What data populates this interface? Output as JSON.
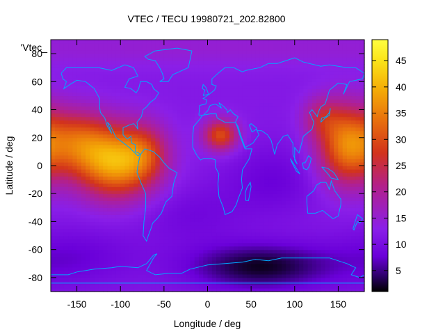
{
  "chart_data": {
    "type": "heatmap",
    "title": "VTEC / TECU 19980721_202.82800",
    "xlabel": "Longitude / deg",
    "ylabel": "Latitude / deg",
    "xlim": [
      -180,
      180
    ],
    "ylim": [
      -90,
      90
    ],
    "xticks": [
      -150,
      -100,
      -50,
      0,
      50,
      100,
      150
    ],
    "yticks": [
      -80,
      -60,
      -40,
      -20,
      0,
      20,
      40,
      60,
      80
    ],
    "legend_label": "'Vtec_",
    "colorbar": {
      "range": [
        1,
        49
      ],
      "ticks": [
        5,
        10,
        15,
        20,
        25,
        30,
        35,
        40,
        45
      ],
      "palette": [
        "#000000",
        "#2b0066",
        "#6a00d9",
        "#8a1fe8",
        "#b3208a",
        "#d2331c",
        "#e8700d",
        "#f4ab06",
        "#fbe51a",
        "#ffff40"
      ],
      "palette_stops": [
        0,
        0.06,
        0.14,
        0.25,
        0.42,
        0.55,
        0.68,
        0.8,
        0.92,
        1
      ]
    },
    "blobs": [
      {
        "name": "background",
        "lon": 0,
        "lat": 0,
        "slon": 1000,
        "slat": 1000,
        "amp": 12
      },
      {
        "name": "pacific-crest",
        "lon": -105,
        "lat": 3,
        "slon": 32,
        "slat": 18,
        "amp": 27
      },
      {
        "name": "pacific-tail",
        "lon": -150,
        "lat": 18,
        "slon": 25,
        "slat": 16,
        "amp": 14
      },
      {
        "name": "pacific-east",
        "lon": -70,
        "lat": 10,
        "slon": 18,
        "slat": 14,
        "amp": 8
      },
      {
        "name": "west-pacific",
        "lon": 160,
        "lat": 15,
        "slon": 24,
        "slat": 20,
        "amp": 23
      },
      {
        "name": "east-asia",
        "lon": 130,
        "lat": 35,
        "slon": 15,
        "slat": 10,
        "amp": 8
      },
      {
        "name": "north-africa",
        "lon": 15,
        "lat": 22,
        "slon": 14,
        "slat": 8,
        "amp": 18
      },
      {
        "name": "indian-ocean",
        "lon": 75,
        "lat": -10,
        "slon": 40,
        "slat": 18,
        "amp": -4
      },
      {
        "name": "south-atlantic",
        "lon": -20,
        "lat": -35,
        "slon": 45,
        "slat": 15,
        "amp": -3
      },
      {
        "name": "south-depletion",
        "lon": 60,
        "lat": -72,
        "slon": 60,
        "slat": 12,
        "amp": -10
      },
      {
        "name": "south-pacific-low",
        "lon": -150,
        "lat": -65,
        "slon": 50,
        "slat": 15,
        "amp": -4
      },
      {
        "name": "arctic",
        "lon": 0,
        "lat": 85,
        "slon": 1000,
        "slat": 10,
        "amp": 3
      }
    ],
    "coastlines": [
      [
        [
          -168,
          66
        ],
        [
          -162,
          70
        ],
        [
          -140,
          70
        ],
        [
          -125,
          70
        ],
        [
          -110,
          68
        ],
        [
          -95,
          72
        ],
        [
          -85,
          70
        ],
        [
          -80,
          64
        ],
        [
          -90,
          62
        ],
        [
          -95,
          56
        ],
        [
          -88,
          55
        ],
        [
          -82,
          52
        ],
        [
          -79,
          55
        ],
        [
          -77,
          60
        ],
        [
          -70,
          60
        ],
        [
          -64,
          58
        ],
        [
          -62,
          55
        ],
        [
          -56,
          52
        ],
        [
          -60,
          48
        ],
        [
          -66,
          45
        ],
        [
          -70,
          42
        ],
        [
          -74,
          40
        ],
        [
          -76,
          35
        ],
        [
          -81,
          31
        ],
        [
          -80,
          26
        ],
        [
          -82,
          28
        ],
        [
          -85,
          30
        ],
        [
          -90,
          29
        ],
        [
          -97,
          27
        ],
        [
          -97,
          22
        ],
        [
          -92,
          19
        ],
        [
          -88,
          21
        ],
        [
          -87,
          16
        ],
        [
          -83,
          15
        ],
        [
          -83,
          10
        ],
        [
          -79,
          9
        ],
        [
          -77,
          8
        ],
        [
          -80,
          7
        ],
        [
          -85,
          10
        ],
        [
          -90,
          13
        ],
        [
          -96,
          16
        ],
        [
          -105,
          20
        ],
        [
          -112,
          29
        ],
        [
          -115,
          31
        ],
        [
          -110,
          23
        ],
        [
          -115,
          28
        ],
        [
          -118,
          34
        ],
        [
          -123,
          38
        ],
        [
          -124,
          42
        ],
        [
          -124,
          48
        ],
        [
          -130,
          55
        ],
        [
          -140,
          60
        ],
        [
          -150,
          61
        ],
        [
          -158,
          58
        ],
        [
          -165,
          55
        ],
        [
          -162,
          60
        ],
        [
          -166,
          62
        ],
        [
          -168,
          66
        ]
      ],
      [
        [
          -77,
          8
        ],
        [
          -72,
          12
        ],
        [
          -62,
          10
        ],
        [
          -55,
          6
        ],
        [
          -50,
          2
        ],
        [
          -44,
          -2
        ],
        [
          -35,
          -5
        ],
        [
          -39,
          -13
        ],
        [
          -41,
          -22
        ],
        [
          -48,
          -26
        ],
        [
          -53,
          -34
        ],
        [
          -58,
          -38
        ],
        [
          -63,
          -41
        ],
        [
          -65,
          -45
        ],
        [
          -68,
          -50
        ],
        [
          -70,
          -54
        ],
        [
          -74,
          -50
        ],
        [
          -73,
          -40
        ],
        [
          -71,
          -30
        ],
        [
          -71,
          -20
        ],
        [
          -76,
          -13
        ],
        [
          -81,
          -5
        ],
        [
          -80,
          0
        ],
        [
          -79,
          3
        ],
        [
          -77,
          8
        ]
      ],
      [
        [
          -10,
          36
        ],
        [
          -9,
          43
        ],
        [
          -2,
          44
        ],
        [
          -1,
          47
        ],
        [
          -5,
          48
        ],
        [
          2,
          51
        ],
        [
          8,
          54
        ],
        [
          10,
          57
        ],
        [
          5,
          58
        ],
        [
          5,
          62
        ],
        [
          14,
          67
        ],
        [
          20,
          70
        ],
        [
          30,
          70
        ],
        [
          40,
          67
        ],
        [
          44,
          68
        ],
        [
          60,
          70
        ],
        [
          70,
          73
        ],
        [
          80,
          73
        ],
        [
          100,
          77
        ],
        [
          110,
          74
        ],
        [
          130,
          71
        ],
        [
          140,
          72
        ],
        [
          160,
          70
        ],
        [
          170,
          70
        ],
        [
          180,
          66
        ],
        [
          178,
          62
        ],
        [
          163,
          60
        ],
        [
          156,
          51
        ],
        [
          160,
          58
        ],
        [
          150,
          59
        ],
        [
          140,
          54
        ],
        [
          135,
          44
        ],
        [
          130,
          42
        ],
        [
          127,
          38
        ],
        [
          126,
          35
        ],
        [
          120,
          40
        ],
        [
          117,
          38
        ],
        [
          122,
          31
        ],
        [
          120,
          26
        ],
        [
          110,
          21
        ],
        [
          108,
          16
        ],
        [
          105,
          9
        ],
        [
          100,
          13
        ],
        [
          100,
          4
        ],
        [
          103,
          1
        ],
        [
          98,
          8
        ],
        [
          98,
          16
        ],
        [
          92,
          22
        ],
        [
          87,
          21
        ],
        [
          80,
          15
        ],
        [
          77,
          8
        ],
        [
          73,
          18
        ],
        [
          69,
          22
        ],
        [
          62,
          25
        ],
        [
          57,
          25
        ],
        [
          56,
          27
        ],
        [
          50,
          30
        ],
        [
          48,
          29
        ],
        [
          51,
          24
        ],
        [
          56,
          26
        ],
        [
          59,
          22
        ],
        [
          52,
          16
        ],
        [
          43,
          13
        ],
        [
          39,
          20
        ],
        [
          35,
          28
        ],
        [
          32,
          31
        ],
        [
          35,
          35
        ],
        [
          30,
          37
        ],
        [
          26,
          40
        ],
        [
          23,
          38
        ],
        [
          22,
          40
        ],
        [
          19,
          42
        ],
        [
          13,
          45
        ],
        [
          16,
          41
        ],
        [
          12,
          43
        ],
        [
          9,
          44
        ],
        [
          3,
          43
        ],
        [
          0,
          39
        ],
        [
          -5,
          36
        ],
        [
          -10,
          36
        ]
      ],
      [
        [
          -17,
          21
        ],
        [
          -16,
          28
        ],
        [
          -9,
          33
        ],
        [
          -6,
          36
        ],
        [
          3,
          37
        ],
        [
          10,
          37
        ],
        [
          11,
          34
        ],
        [
          20,
          31
        ],
        [
          30,
          31
        ],
        [
          32,
          31
        ],
        [
          34,
          28
        ],
        [
          38,
          20
        ],
        [
          43,
          12
        ],
        [
          51,
          12
        ],
        [
          48,
          5
        ],
        [
          40,
          -3
        ],
        [
          39,
          -10
        ],
        [
          40,
          -16
        ],
        [
          35,
          -24
        ],
        [
          33,
          -28
        ],
        [
          28,
          -33
        ],
        [
          20,
          -35
        ],
        [
          18,
          -30
        ],
        [
          13,
          -22
        ],
        [
          12,
          -13
        ],
        [
          13,
          -6
        ],
        [
          9,
          -1
        ],
        [
          9,
          4
        ],
        [
          5,
          5
        ],
        [
          -5,
          5
        ],
        [
          -8,
          4
        ],
        [
          -12,
          7
        ],
        [
          -17,
          13
        ],
        [
          -17,
          21
        ]
      ],
      [
        [
          114,
          -22
        ],
        [
          114,
          -26
        ],
        [
          115,
          -34
        ],
        [
          124,
          -34
        ],
        [
          132,
          -32
        ],
        [
          138,
          -35
        ],
        [
          144,
          -38
        ],
        [
          150,
          -36
        ],
        [
          153,
          -28
        ],
        [
          153,
          -24
        ],
        [
          146,
          -18
        ],
        [
          142,
          -11
        ],
        [
          140,
          -17
        ],
        [
          136,
          -12
        ],
        [
          130,
          -12
        ],
        [
          125,
          -14
        ],
        [
          122,
          -18
        ],
        [
          114,
          -22
        ]
      ],
      [
        [
          -180,
          -84
        ],
        [
          -180,
          -78
        ],
        [
          -160,
          -78
        ],
        [
          -150,
          -76
        ],
        [
          -130,
          -74
        ],
        [
          -110,
          -73
        ],
        [
          -100,
          -72
        ],
        [
          -80,
          -73
        ],
        [
          -70,
          -70
        ],
        [
          -62,
          -64
        ],
        [
          -58,
          -63
        ],
        [
          -62,
          -66
        ],
        [
          -70,
          -75
        ],
        [
          -60,
          -78
        ],
        [
          -45,
          -77
        ],
        [
          -30,
          -77
        ],
        [
          -20,
          -74
        ],
        [
          0,
          -71
        ],
        [
          20,
          -70
        ],
        [
          40,
          -69
        ],
        [
          55,
          -67
        ],
        [
          70,
          -68
        ],
        [
          85,
          -66
        ],
        [
          100,
          -66
        ],
        [
          120,
          -66
        ],
        [
          140,
          -66
        ],
        [
          160,
          -70
        ],
        [
          170,
          -73
        ],
        [
          165,
          -78
        ],
        [
          175,
          -80
        ],
        [
          180,
          -78
        ],
        [
          180,
          -84
        ],
        [
          -180,
          -84
        ]
      ],
      [
        [
          -55,
          60
        ],
        [
          -45,
          60
        ],
        [
          -40,
          65
        ],
        [
          -22,
          70
        ],
        [
          -20,
          76
        ],
        [
          -18,
          82
        ],
        [
          -35,
          84
        ],
        [
          -60,
          82
        ],
        [
          -72,
          78
        ],
        [
          -68,
          76
        ],
        [
          -60,
          75
        ],
        [
          -55,
          70
        ],
        [
          -52,
          66
        ],
        [
          -50,
          62
        ],
        [
          -55,
          60
        ]
      ],
      [
        [
          -5,
          50
        ],
        [
          1,
          51
        ],
        [
          0,
          53
        ],
        [
          -2,
          56
        ],
        [
          -5,
          58
        ],
        [
          -6,
          55
        ],
        [
          -3,
          54
        ],
        [
          -5,
          50
        ]
      ],
      [
        [
          130,
          31
        ],
        [
          135,
          34
        ],
        [
          140,
          36
        ],
        [
          141,
          41
        ],
        [
          140,
          38
        ],
        [
          136,
          35
        ],
        [
          131,
          34
        ],
        [
          130,
          31
        ]
      ],
      [
        [
          95,
          5
        ],
        [
          100,
          0
        ],
        [
          104,
          -4
        ],
        [
          106,
          -6
        ],
        [
          102,
          -4
        ],
        [
          97,
          2
        ],
        [
          95,
          5
        ]
      ],
      [
        [
          109,
          2
        ],
        [
          110,
          -2
        ],
        [
          114,
          -3
        ],
        [
          117,
          0
        ],
        [
          119,
          5
        ],
        [
          116,
          7
        ],
        [
          112,
          2
        ],
        [
          109,
          2
        ]
      ],
      [
        [
          131,
          -1
        ],
        [
          138,
          -2
        ],
        [
          145,
          -5
        ],
        [
          150,
          -10
        ],
        [
          142,
          -9
        ],
        [
          137,
          -5
        ],
        [
          131,
          -1
        ]
      ],
      [
        [
          44,
          -25
        ],
        [
          43,
          -20
        ],
        [
          45,
          -16
        ],
        [
          49,
          -12
        ],
        [
          50,
          -15
        ],
        [
          47,
          -25
        ],
        [
          44,
          -25
        ]
      ],
      [
        [
          172,
          -35
        ],
        [
          178,
          -38
        ],
        [
          175,
          -41
        ],
        [
          172,
          -40
        ],
        [
          168,
          -46
        ],
        [
          167,
          -45
        ],
        [
          172,
          -35
        ]
      ]
    ]
  }
}
